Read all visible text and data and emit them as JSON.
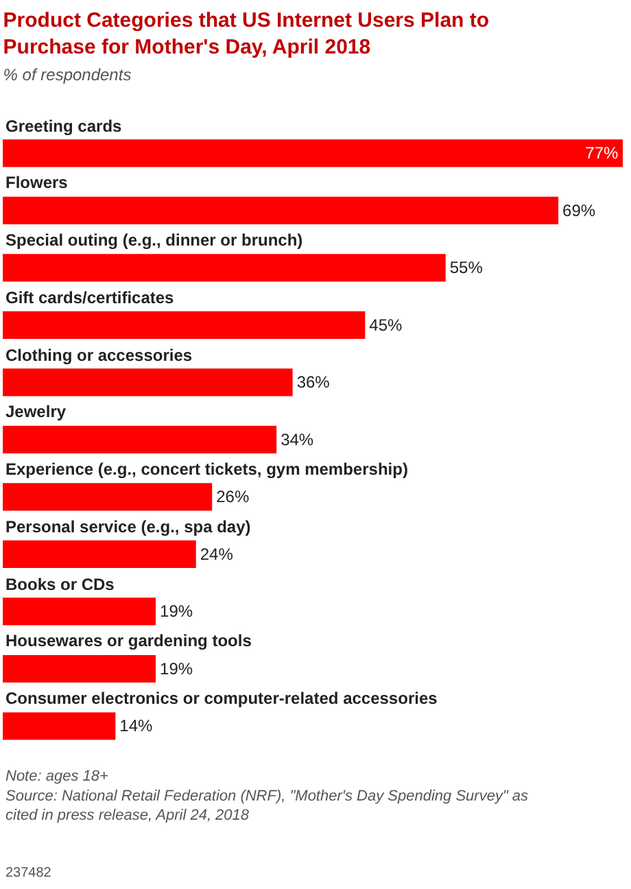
{
  "chart_data": {
    "type": "bar",
    "orientation": "horizontal",
    "title": "Product Categories that US Internet Users Plan to Purchase for Mother's Day, April 2018",
    "subtitle": "% of respondents",
    "categories": [
      "Greeting cards",
      "Flowers",
      "Special outing (e.g., dinner or brunch)",
      "Gift cards/certificates",
      "Clothing or accessories",
      "Jewelry",
      "Experience (e.g., concert tickets, gym membership)",
      "Personal service (e.g., spa day)",
      "Books or CDs",
      "Housewares or gardening tools",
      "Consumer electronics or computer-related accessories"
    ],
    "values": [
      77,
      69,
      55,
      45,
      36,
      34,
      26,
      24,
      19,
      19,
      14
    ],
    "value_labels": [
      "77%",
      "69%",
      "55%",
      "45%",
      "36%",
      "34%",
      "26%",
      "24%",
      "19%",
      "19%",
      "14%"
    ],
    "color": "#ff0000",
    "annotations": [
      "Note: ages 18+",
      "Source: National Retail Federation (NRF), \"Mother's Day Spending Survey\" as cited in press release, April 24, 2018",
      "237482"
    ]
  }
}
